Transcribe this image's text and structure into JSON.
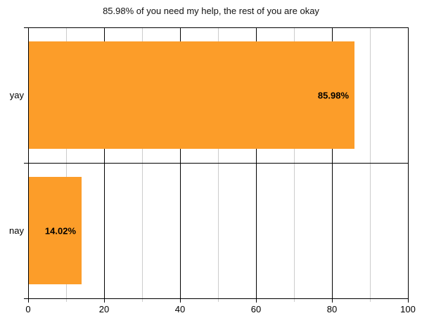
{
  "chart_data": {
    "type": "bar",
    "orientation": "horizontal",
    "title": "85.98% of you need my help, the rest of you are okay",
    "categories": [
      "yay",
      "nay"
    ],
    "values": [
      85.98,
      14.02
    ],
    "value_labels": [
      "85.98%",
      "14.02%"
    ],
    "xlabel": "",
    "ylabel": "",
    "xlim": [
      0,
      100
    ],
    "x_major_ticks": [
      0,
      20,
      40,
      60,
      80,
      100
    ],
    "x_major_tick_labels": [
      "0",
      "20",
      "40",
      "60",
      "80",
      "100"
    ],
    "x_minor_ticks": [
      10,
      30,
      50,
      70,
      90
    ],
    "grid": true,
    "legend": false,
    "colors": {
      "bar": "#FC9D29",
      "major_grid": "#000000",
      "minor_grid": "#CCCCCC",
      "text": "#000000",
      "background": "#FFFFFF"
    }
  }
}
